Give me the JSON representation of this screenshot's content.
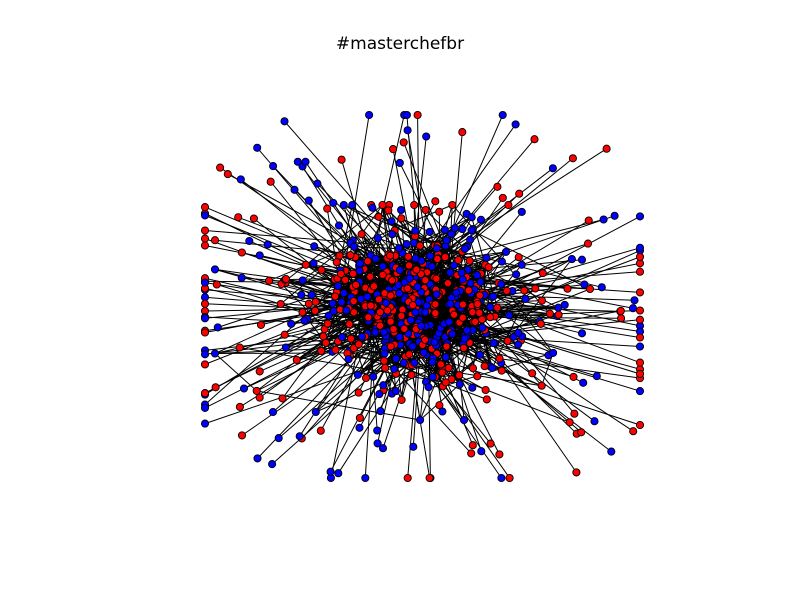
{
  "title": "#masterchefbr",
  "graph": {
    "type": "network",
    "node_colors": {
      "class_a": "#ff0000",
      "class_b": "#0000ff"
    },
    "edge_color": "#000000",
    "node_outline": "#000000",
    "background": "#ffffff"
  }
}
